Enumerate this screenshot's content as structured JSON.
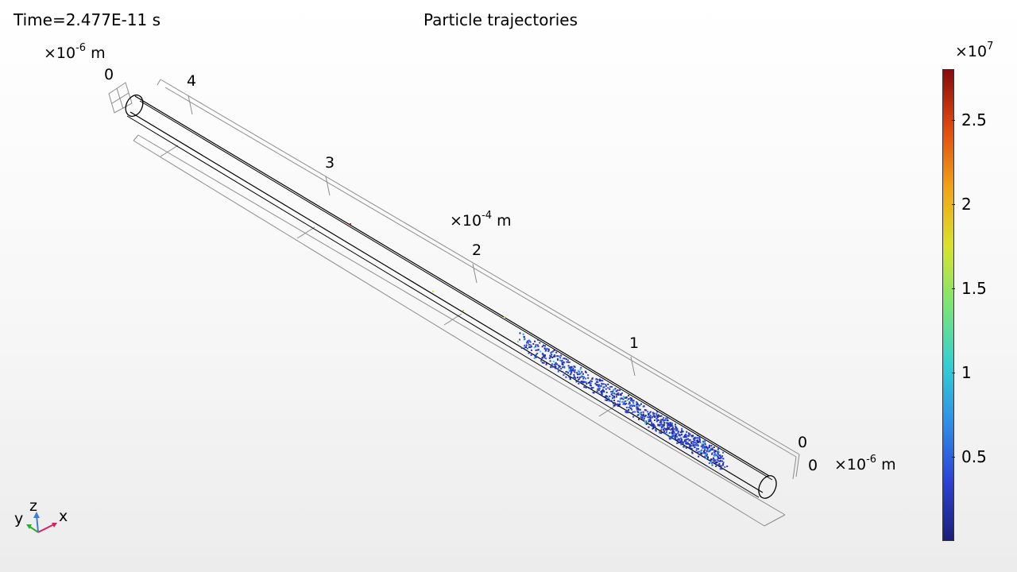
{
  "header": {
    "time_label": "Time=2.477E-11 s",
    "plot_title": "Particle trajectories"
  },
  "axes": {
    "x_axis": {
      "ticks": [
        "0",
        "1",
        "2",
        "3",
        "4"
      ],
      "mult_prefix": "×10",
      "mult_exp": "-4",
      "unit": "m"
    },
    "y_axis_far": {
      "tick": "0",
      "mult_prefix": "×10",
      "mult_exp": "-6",
      "unit": "m"
    },
    "y_axis_near": {
      "tick": "0",
      "mult_prefix": "×10",
      "mult_exp": "-6",
      "unit": "m"
    }
  },
  "colorbar": {
    "mult_prefix": "×10",
    "mult_exp": "7",
    "ticks": [
      "2.5",
      "2",
      "1.5",
      "1",
      "0.5"
    ],
    "tick_values": [
      2.5,
      2.0,
      1.5,
      1.0,
      0.5
    ],
    "min": 0,
    "max": 2.8,
    "colormap": [
      "#1b1f7a",
      "#2c41d6",
      "#2e8fe9",
      "#33d0d3",
      "#7be574",
      "#d8e32b",
      "#f2a216",
      "#e14a10",
      "#8a0b0b"
    ]
  },
  "triad": {
    "x": "x",
    "y": "y",
    "z": "z",
    "x_color": "#d8205e",
    "y_color": "#33aa33",
    "z_color": "#3b7fd6"
  }
}
